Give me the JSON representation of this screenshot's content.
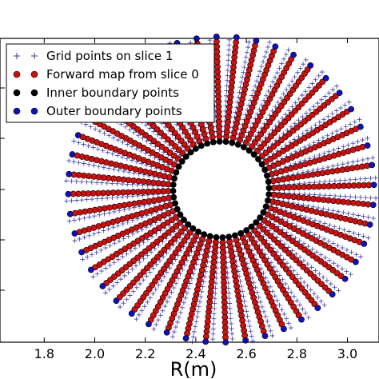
{
  "chart_data": {
    "type": "scatter",
    "title": "",
    "xlabel": "R(m)",
    "ylabel": "",
    "xlim": [
      1.625,
      3.125
    ],
    "x_ticks": [
      "1.8",
      "2.0",
      "2.2",
      "2.4",
      "2.6",
      "2.8",
      "3.0"
    ],
    "x_tick_values": [
      1.8,
      2.0,
      2.2,
      2.4,
      2.6,
      2.8,
      3.0
    ],
    "grid": false,
    "legend_position": "top-left",
    "geometry_note_values": {
      "center_R": 2.5,
      "inner_radius_m": 0.19,
      "outer_radius_m": 0.605,
      "num_radial_lines": 48,
      "points_per_line": 22
    },
    "series": [
      {
        "name": "Grid points on slice 1",
        "marker": "plus",
        "color": "#3a3aa8"
      },
      {
        "name": "Forward map from slice 0",
        "marker": "circle",
        "color": "#cc1111"
      },
      {
        "name": "Inner boundary points",
        "marker": "circle",
        "color": "#000000"
      },
      {
        "name": "Outer boundary points",
        "marker": "circle",
        "color": "#1111bb"
      }
    ]
  }
}
